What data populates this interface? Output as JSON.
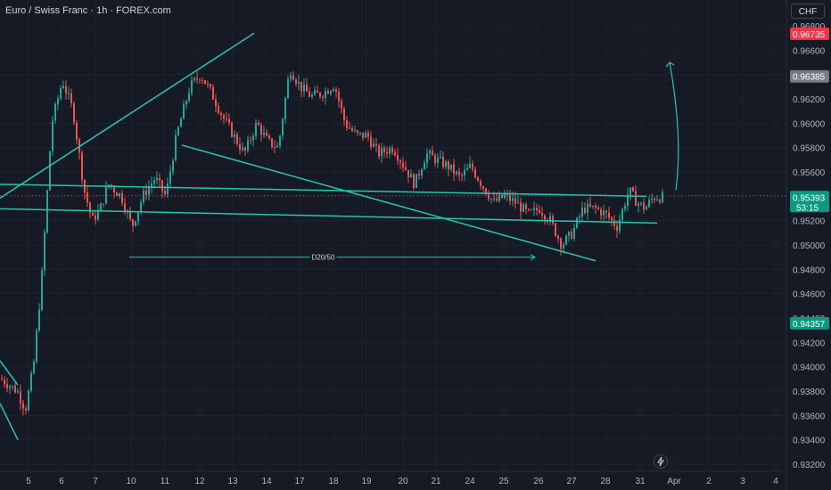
{
  "header": {
    "title": "Euro / Swiss Franc · 1h · FOREX.com",
    "currency_button": "CHF"
  },
  "icons": {
    "alert": "lightning-icon"
  },
  "colors": {
    "background": "#161a25",
    "grid": "#1f2330",
    "up": "#26a69a",
    "down": "#ef5350",
    "drawing": "#26c6b0",
    "axis_text": "#b2b5be"
  },
  "chart_data": {
    "type": "candlestick",
    "symbol": "Euro / Swiss Franc",
    "interval": "1h",
    "source": "FOREX.com",
    "ylim": [
      0.932,
      0.968
    ],
    "y_ticks": [
      "0.96800",
      "0.96600",
      "0.96400",
      "0.96200",
      "0.96000",
      "0.95800",
      "0.95600",
      "0.95400",
      "0.95200",
      "0.95000",
      "0.94800",
      "0.94600",
      "0.94400",
      "0.94200",
      "0.94000",
      "0.93800",
      "0.93600",
      "0.93400",
      "0.93200"
    ],
    "x_ticks": [
      "5",
      "6",
      "7",
      "10",
      "11",
      "12",
      "13",
      "14",
      "17",
      "18",
      "19",
      "20",
      "21",
      "24",
      "25",
      "26",
      "27",
      "28",
      "31",
      "Apr",
      "2",
      "3",
      "4"
    ],
    "price_labels": [
      {
        "value": "0.96735",
        "kind": "high",
        "color": "#f23645"
      },
      {
        "value": "0.96385",
        "kind": "marker",
        "color": "#787b86"
      },
      {
        "value": "0.95393",
        "kind": "last",
        "color": "#089981",
        "countdown": "53:15"
      },
      {
        "value": "0.94357",
        "kind": "low",
        "color": "#089981"
      }
    ],
    "close_path": [
      [
        "5",
        0.938
      ],
      [
        "5",
        0.9365
      ],
      [
        "5",
        0.94
      ],
      [
        "5",
        0.947
      ],
      [
        "6",
        0.96
      ],
      [
        "6",
        0.9635
      ],
      [
        "6",
        0.961
      ],
      [
        "7",
        0.9545
      ],
      [
        "7",
        0.952
      ],
      [
        "7",
        0.953
      ],
      [
        "7",
        0.955
      ],
      [
        "10",
        0.954
      ],
      [
        "10",
        0.9515
      ],
      [
        "10",
        0.954
      ],
      [
        "11",
        0.9555
      ],
      [
        "11",
        0.954
      ],
      [
        "11",
        0.959
      ],
      [
        "12",
        0.963
      ],
      [
        "12",
        0.964
      ],
      [
        "12",
        0.9625
      ],
      [
        "13",
        0.9605
      ],
      [
        "13",
        0.959
      ],
      [
        "13",
        0.9575
      ],
      [
        "14",
        0.96
      ],
      [
        "14",
        0.9585
      ],
      [
        "14",
        0.958
      ],
      [
        "17",
        0.9645
      ],
      [
        "17",
        0.963
      ],
      [
        "17",
        0.9622
      ],
      [
        "18",
        0.9625
      ],
      [
        "18",
        0.9632
      ],
      [
        "18",
        0.96
      ],
      [
        "19",
        0.959
      ],
      [
        "19",
        0.959
      ],
      [
        "19",
        0.9575
      ],
      [
        "20",
        0.958
      ],
      [
        "20",
        0.9565
      ],
      [
        "20",
        0.955
      ],
      [
        "21",
        0.9575
      ],
      [
        "21",
        0.957
      ],
      [
        "21",
        0.9565
      ],
      [
        "24",
        0.9555
      ],
      [
        "24",
        0.9565
      ],
      [
        "24",
        0.955
      ],
      [
        "25",
        0.9535
      ],
      [
        "25",
        0.954
      ],
      [
        "25",
        0.9535
      ],
      [
        "26",
        0.9525
      ],
      [
        "26",
        0.953
      ],
      [
        "26",
        0.952
      ],
      [
        "27",
        0.95
      ],
      [
        "27",
        0.951
      ],
      [
        "27",
        0.953
      ],
      [
        "28",
        0.953
      ],
      [
        "28",
        0.9525
      ],
      [
        "28",
        0.9515
      ],
      [
        "31",
        0.9545
      ],
      [
        "31",
        0.9535
      ],
      [
        "31",
        0.953
      ],
      [
        "31",
        0.95393
      ]
    ],
    "annotations": [
      {
        "kind": "channel-upper",
        "from": [
          "14",
          0.9674
        ],
        "to": [
          "29",
          0.953
        ]
      },
      {
        "kind": "channel-lower",
        "from": [
          "11",
          0.9582
        ],
        "to": [
          "27",
          0.9487
        ]
      },
      {
        "kind": "left-channel",
        "from": [
          "4",
          0.9395
        ],
        "to": [
          "5",
          0.935
        ]
      },
      {
        "kind": "flag-upper",
        "from": [
          "29",
          0.955
        ],
        "to": [
          "31",
          0.954
        ]
      },
      {
        "kind": "flag-lower",
        "from": [
          "29",
          0.953
        ],
        "to": [
          "31",
          0.9518
        ]
      },
      {
        "kind": "projection-arrow",
        "from": [
          "31",
          0.9545
        ],
        "to": [
          "Apr",
          0.965
        ]
      },
      {
        "kind": "date-range-arrow",
        "label": "D20/50",
        "from": [
          "10",
          0.949
        ],
        "to": [
          "26",
          0.949
        ]
      }
    ]
  }
}
